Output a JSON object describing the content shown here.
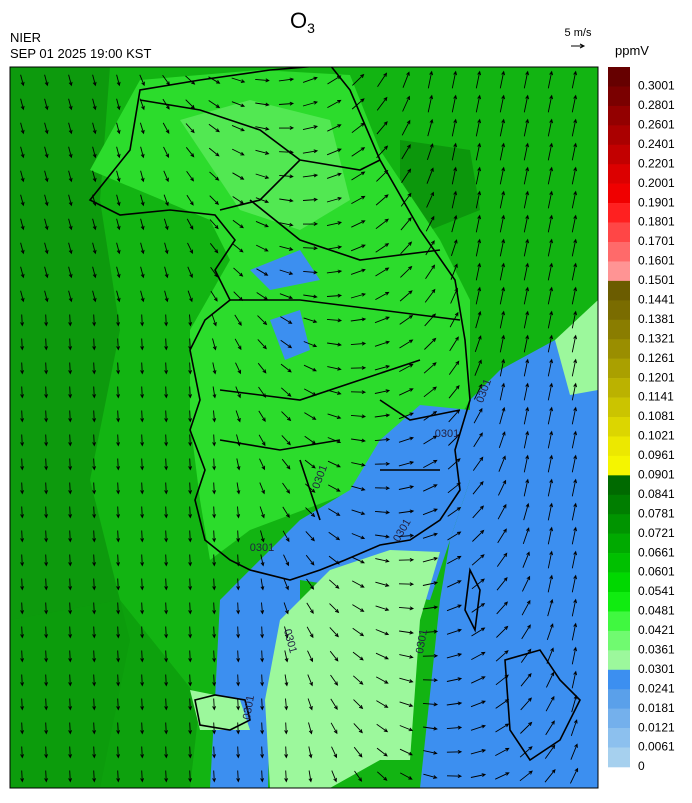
{
  "header": {
    "title": "O",
    "title_subscript": "3",
    "agency": "NIER",
    "timestamp": "SEP 01 2025 19:00 KST"
  },
  "wind_scale": {
    "label": "5 m/s"
  },
  "colorbar": {
    "unit": "ppmV",
    "labels": [
      "0.3001",
      "0.2801",
      "0.2601",
      "0.2401",
      "0.2201",
      "0.2001",
      "0.1901",
      "0.1801",
      "0.1701",
      "0.1601",
      "0.1501",
      "0.1441",
      "0.1381",
      "0.1321",
      "0.1261",
      "0.1201",
      "0.1141",
      "0.1081",
      "0.1021",
      "0.0961",
      "0.0901",
      "0.0841",
      "0.0781",
      "0.0721",
      "0.0661",
      "0.0601",
      "0.0541",
      "0.0481",
      "0.0421",
      "0.0361",
      "0.0301",
      "0.0241",
      "0.0181",
      "0.0121",
      "0.0061",
      "0"
    ],
    "colors": [
      "#660000",
      "#7a0000",
      "#930000",
      "#aa0000",
      "#c20000",
      "#dc0000",
      "#f00000",
      "#ff2020",
      "#ff4646",
      "#ff6a6a",
      "#ff9494",
      "#6b5c00",
      "#7a6c00",
      "#8a7d00",
      "#9a8e00",
      "#aaa000",
      "#bbb200",
      "#cbc400",
      "#dcd600",
      "#ece800",
      "#f5f500",
      "#006a00",
      "#007e00",
      "#009400",
      "#00aa00",
      "#00c000",
      "#00d800",
      "#10ec10",
      "#40f840",
      "#70fa70",
      "#9cf89c",
      "#3c8ff0",
      "#5aa0ea",
      "#74b0ec",
      "#8cc0ee",
      "#a6d0ee"
    ]
  },
  "contour_labels": [
    "0301",
    "0301",
    "0301",
    "0301",
    "0301",
    "0301",
    "0301",
    "0301"
  ]
}
